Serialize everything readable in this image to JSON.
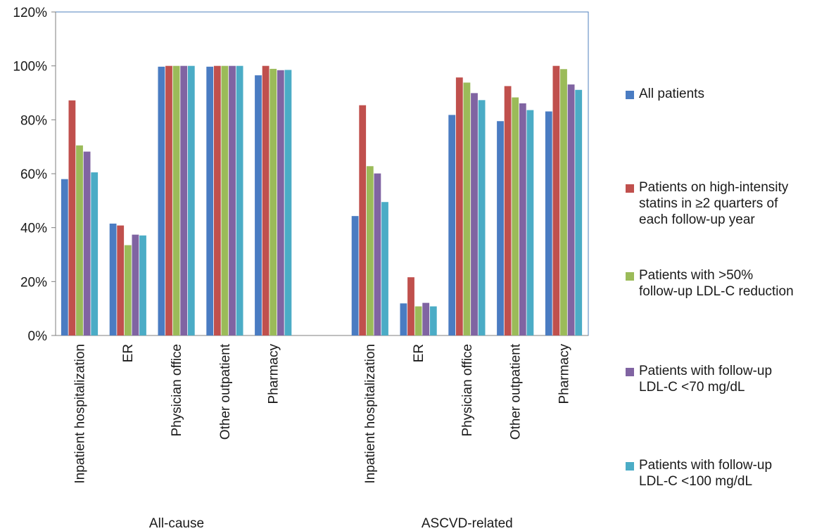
{
  "chart_data": {
    "type": "bar",
    "ylim": [
      0,
      120
    ],
    "yticks": [
      "0%",
      "20%",
      "40%",
      "60%",
      "80%",
      "100%",
      "120%"
    ],
    "grid": false,
    "legend_position": "right",
    "groups": [
      {
        "label": "All-cause",
        "categories": [
          "Inpatient hospitalization",
          "ER",
          "Physician office",
          "Other outpatient",
          "Pharmacy"
        ]
      },
      {
        "label": "ASCVD-related",
        "categories": [
          "Inpatient hospitalization",
          "ER",
          "Physician office",
          "Other outpatient",
          "Pharmacy"
        ]
      }
    ],
    "series": [
      {
        "name": "All patients",
        "color": "#4a7cc2",
        "values": [
          58,
          41.5,
          99.7,
          99.7,
          96.5,
          44.3,
          11.9,
          81.8,
          79.5,
          83.1
        ]
      },
      {
        "name": "Patients on high-intensity statins in ≥2 quarters of each follow-up year",
        "color": "#c0504d",
        "values": [
          87.2,
          40.8,
          100,
          100,
          100,
          85.4,
          21.6,
          95.7,
          92.5,
          100
        ]
      },
      {
        "name": "Patients with >50% follow-up LDL-C reduction",
        "color": "#9bbb59",
        "values": [
          70.5,
          33.5,
          100,
          100,
          98.9,
          62.8,
          10.8,
          93.8,
          88.3,
          98.8
        ]
      },
      {
        "name": "Patients with follow-up LDL-C <70 mg/dL",
        "color": "#8064a2",
        "values": [
          68.2,
          37.4,
          100,
          100,
          98.4,
          60.1,
          12.1,
          89.9,
          86.1,
          93.1
        ]
      },
      {
        "name": "Patients with follow-up LDL-C <100 mg/dL",
        "color": "#4bacc6",
        "values": [
          60.5,
          37.1,
          100,
          100,
          98.5,
          49.5,
          10.8,
          87.3,
          83.6,
          91.1
        ]
      }
    ]
  },
  "legend": {
    "items": [
      {
        "lines": [
          "All patients"
        ],
        "color": "#4a7cc2"
      },
      {
        "lines": [
          "Patients on high-intensity",
          "statins in ≥2 quarters of",
          "each follow-up year"
        ],
        "color": "#c0504d"
      },
      {
        "lines": [
          "Patients with >50%",
          "follow-up LDL-C reduction"
        ],
        "color": "#9bbb59"
      },
      {
        "lines": [
          "Patients with follow-up",
          "LDL-C <70 mg/dL"
        ],
        "color": "#8064a2"
      },
      {
        "lines": [
          "Patients with follow-up",
          "LDL-C <100 mg/dL"
        ],
        "color": "#4bacc6"
      }
    ]
  }
}
